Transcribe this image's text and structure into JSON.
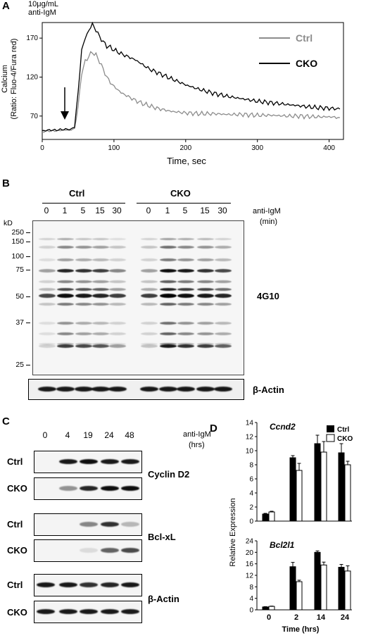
{
  "panels": {
    "A": {
      "label": "A",
      "stim_line1": "10μg/mL",
      "stim_line2": "anti-IgM",
      "ylabel_line1": "Calcium",
      "ylabel_line2": "(Ratio: Fluo-4/Fura red)",
      "xlabel": "Time, sec",
      "arrow": "arrow-icon"
    },
    "B": {
      "label": "B",
      "groups": [
        "Ctrl",
        "CKO"
      ],
      "lanes": [
        "0",
        "1",
        "5",
        "15",
        "30",
        "0",
        "1",
        "5",
        "15",
        "30"
      ],
      "treatment_line1": "anti-IgM",
      "treatment_line2": "(min)",
      "kd_label": "kD",
      "kd_markers": [
        "250",
        "150",
        "100",
        "75",
        "50",
        "37",
        "25"
      ],
      "blot_label": "4G10",
      "loading_label": "β-Actin"
    },
    "C": {
      "label": "C",
      "lanes": [
        "0",
        "4",
        "19",
        "24",
        "48"
      ],
      "treatment_line1": "anti-IgM",
      "treatment_line2": "(hrs)",
      "rows": [
        "Ctrl",
        "CKO",
        "Ctrl",
        "CKO",
        "Ctrl",
        "CKO"
      ],
      "proteins": [
        "Cyclin D2",
        "Bcl-xL",
        "β-Actin"
      ]
    },
    "D": {
      "label": "D",
      "legend": [
        "Ctrl",
        "CKO"
      ],
      "ylabel": "Relative Expression",
      "xlabel": "Time (hrs)"
    }
  },
  "chart_data": [
    {
      "type": "line",
      "panel": "A",
      "xlabel": "Time, sec",
      "ylabel": "Calcium (Ratio: Fluo-4/Fura red)",
      "xlim": [
        0,
        420
      ],
      "ylim": [
        40,
        190
      ],
      "xticks": [
        0,
        100,
        200,
        300,
        400
      ],
      "yticks": [
        70,
        120,
        170
      ],
      "legend_position": "top-right",
      "series": [
        {
          "name": "Ctrl",
          "color": "#8c8c8c",
          "x": [
            0,
            10,
            20,
            30,
            40,
            45,
            50,
            55,
            60,
            65,
            70,
            75,
            80,
            85,
            90,
            95,
            100,
            110,
            120,
            130,
            140,
            150,
            160,
            170,
            180,
            200,
            220,
            240,
            260,
            280,
            300,
            320,
            340,
            360,
            380,
            400,
            415
          ],
          "y": [
            50,
            51,
            51,
            52,
            52,
            54,
            82,
            125,
            140,
            147,
            152,
            148,
            140,
            130,
            120,
            113,
            108,
            100,
            95,
            90,
            86,
            83,
            80,
            78,
            76,
            74,
            73,
            73,
            72,
            72,
            71,
            71,
            70,
            70,
            69,
            69,
            68
          ]
        },
        {
          "name": "CKO",
          "color": "#000000",
          "x": [
            0,
            10,
            20,
            30,
            40,
            45,
            50,
            55,
            60,
            65,
            70,
            75,
            80,
            85,
            90,
            95,
            100,
            110,
            120,
            130,
            140,
            150,
            160,
            170,
            180,
            200,
            220,
            240,
            260,
            280,
            300,
            320,
            340,
            360,
            380,
            400,
            415
          ],
          "y": [
            51,
            52,
            52,
            53,
            53,
            56,
            100,
            155,
            170,
            180,
            188,
            180,
            172,
            165,
            160,
            158,
            155,
            150,
            146,
            142,
            136,
            130,
            126,
            122,
            118,
            110,
            104,
            99,
            95,
            92,
            89,
            87,
            85,
            83,
            81,
            80,
            79
          ]
        }
      ]
    },
    {
      "type": "bar",
      "panel": "D-top",
      "title": "Ccnd2",
      "ylabel": "Relative Expression",
      "categories": [
        "0",
        "2",
        "14",
        "24"
      ],
      "ylim": [
        0,
        14
      ],
      "yticks": [
        0,
        2,
        4,
        6,
        8,
        10,
        12,
        14
      ],
      "legend_position": "top-right",
      "series": [
        {
          "name": "Ctrl",
          "color": "#000000",
          "values": [
            1.0,
            9.0,
            11.0,
            9.7
          ],
          "errors": [
            0.1,
            0.3,
            1.2,
            1.3
          ]
        },
        {
          "name": "CKO",
          "color": "#ffffff",
          "values": [
            1.3,
            7.2,
            9.8,
            8.0
          ],
          "errors": [
            0.1,
            1.0,
            1.5,
            0.5
          ]
        }
      ]
    },
    {
      "type": "bar",
      "panel": "D-bottom",
      "title": "Bcl2l1",
      "xlabel": "Time (hrs)",
      "categories": [
        "0",
        "2",
        "14",
        "24"
      ],
      "ylim": [
        0,
        24
      ],
      "yticks": [
        0,
        4,
        8,
        12,
        16,
        20,
        24
      ],
      "series": [
        {
          "name": "Ctrl",
          "color": "#000000",
          "values": [
            1.0,
            15.0,
            20.0,
            14.8
          ],
          "errors": [
            0.1,
            1.5,
            0.5,
            1.0
          ]
        },
        {
          "name": "CKO",
          "color": "#ffffff",
          "values": [
            1.2,
            9.8,
            15.6,
            13.5
          ],
          "errors": [
            0.1,
            0.5,
            1.0,
            1.8
          ]
        }
      ]
    }
  ]
}
